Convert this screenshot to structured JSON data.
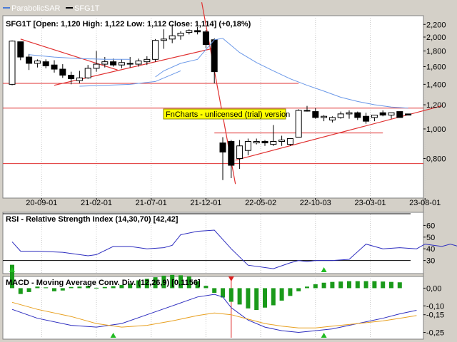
{
  "legend": {
    "items": [
      {
        "label": "ParabolicSAR",
        "color": "#4a7bd6"
      },
      {
        "label": "SFG1T",
        "color": "#000000"
      }
    ]
  },
  "watermark": "FnCharts - unlicensed (trial) version",
  "chart_data": [
    {
      "type": "candlestick",
      "title": "SFG1T [Open: 1,120  High: 1,122  Low: 1,112  Close: 1,114] (+0,18%)",
      "y_scale": "log",
      "ylim": [
        0.6,
        2.3
      ],
      "yticks": [
        0.8,
        1.0,
        1.2,
        1.4,
        1.6,
        1.8,
        2.0,
        2.2
      ],
      "ytick_labels": [
        "0,800",
        "1,000",
        "1,200",
        "1,400",
        "1,600",
        "1,800",
        "2,000",
        "2,200"
      ],
      "xtick_labels": [
        "20-09-01",
        "21-02-01",
        "21-07-01",
        "21-12-01",
        "22-05-02",
        "22-10-03",
        "23-03-01",
        "23-08-01"
      ],
      "xtick_index": [
        3.5,
        10,
        16.5,
        23,
        29.5,
        36,
        42.5,
        49
      ],
      "candles": [
        {
          "o": 1.4,
          "h": 1.95,
          "l": 1.39,
          "c": 1.94
        },
        {
          "o": 1.93,
          "h": 1.93,
          "l": 1.68,
          "c": 1.72
        },
        {
          "o": 1.72,
          "h": 1.76,
          "l": 1.56,
          "c": 1.64
        },
        {
          "o": 1.64,
          "h": 1.69,
          "l": 1.59,
          "c": 1.67
        },
        {
          "o": 1.66,
          "h": 1.69,
          "l": 1.58,
          "c": 1.61
        },
        {
          "o": 1.62,
          "h": 1.68,
          "l": 1.53,
          "c": 1.57
        },
        {
          "o": 1.57,
          "h": 1.63,
          "l": 1.47,
          "c": 1.5
        },
        {
          "o": 1.5,
          "h": 1.54,
          "l": 1.4,
          "c": 1.46
        },
        {
          "o": 1.44,
          "h": 1.55,
          "l": 1.41,
          "c": 1.47
        },
        {
          "o": 1.47,
          "h": 1.62,
          "l": 1.46,
          "c": 1.58
        },
        {
          "o": 1.58,
          "h": 1.8,
          "l": 1.54,
          "c": 1.63
        },
        {
          "o": 1.63,
          "h": 1.72,
          "l": 1.59,
          "c": 1.66
        },
        {
          "o": 1.66,
          "h": 1.7,
          "l": 1.6,
          "c": 1.62
        },
        {
          "o": 1.62,
          "h": 1.69,
          "l": 1.58,
          "c": 1.65
        },
        {
          "o": 1.64,
          "h": 1.72,
          "l": 1.59,
          "c": 1.63
        },
        {
          "o": 1.63,
          "h": 1.7,
          "l": 1.6,
          "c": 1.67
        },
        {
          "o": 1.66,
          "h": 1.73,
          "l": 1.62,
          "c": 1.69
        },
        {
          "o": 1.69,
          "h": 1.97,
          "l": 1.66,
          "c": 1.95
        },
        {
          "o": 1.95,
          "h": 2.12,
          "l": 1.83,
          "c": 1.97
        },
        {
          "o": 1.97,
          "h": 2.2,
          "l": 1.91,
          "c": 2.02
        },
        {
          "o": 2.02,
          "h": 2.09,
          "l": 1.96,
          "c": 2.06
        },
        {
          "o": 2.07,
          "h": 2.12,
          "l": 2.04,
          "c": 2.1
        },
        {
          "o": 2.1,
          "h": 2.16,
          "l": 2.04,
          "c": 2.08
        },
        {
          "o": 2.08,
          "h": 2.11,
          "l": 1.84,
          "c": 1.89
        },
        {
          "o": 1.96,
          "h": 1.98,
          "l": 1.41,
          "c": 1.54
        },
        {
          "o": 0.9,
          "h": 0.94,
          "l": 0.68,
          "c": 0.84
        },
        {
          "o": 0.91,
          "h": 0.92,
          "l": 0.69,
          "c": 0.76
        },
        {
          "o": 0.8,
          "h": 0.92,
          "l": 0.74,
          "c": 0.88
        },
        {
          "o": 0.85,
          "h": 0.93,
          "l": 0.82,
          "c": 0.91
        },
        {
          "o": 0.9,
          "h": 0.93,
          "l": 0.89,
          "c": 0.91
        },
        {
          "o": 0.91,
          "h": 0.92,
          "l": 0.88,
          "c": 0.9
        },
        {
          "o": 0.89,
          "h": 1.03,
          "l": 0.88,
          "c": 0.91
        },
        {
          "o": 0.91,
          "h": 0.95,
          "l": 0.88,
          "c": 0.92
        },
        {
          "o": 0.89,
          "h": 0.92,
          "l": 0.88,
          "c": 0.93
        },
        {
          "o": 0.94,
          "h": 1.16,
          "l": 0.94,
          "c": 1.15
        },
        {
          "o": 1.15,
          "h": 1.19,
          "l": 1.14,
          "c": 1.15
        },
        {
          "o": 1.14,
          "h": 1.17,
          "l": 1.08,
          "c": 1.09
        },
        {
          "o": 1.09,
          "h": 1.11,
          "l": 1.06,
          "c": 1.1
        },
        {
          "o": 1.07,
          "h": 1.1,
          "l": 1.05,
          "c": 1.09
        },
        {
          "o": 1.09,
          "h": 1.14,
          "l": 1.08,
          "c": 1.12
        },
        {
          "o": 1.12,
          "h": 1.15,
          "l": 1.08,
          "c": 1.13
        },
        {
          "o": 1.13,
          "h": 1.14,
          "l": 1.07,
          "c": 1.09
        },
        {
          "o": 1.1,
          "h": 1.13,
          "l": 1.04,
          "c": 1.06
        },
        {
          "o": 1.09,
          "h": 1.11,
          "l": 1.06,
          "c": 1.11
        },
        {
          "o": 1.13,
          "h": 1.15,
          "l": 1.1,
          "c": 1.11
        },
        {
          "o": 1.11,
          "h": 1.12,
          "l": 1.08,
          "c": 1.13
        },
        {
          "o": 1.14,
          "h": 1.14,
          "l": 1.09,
          "c": 1.09
        },
        {
          "o": 1.12,
          "h": 1.12,
          "l": 1.11,
          "c": 1.11
        }
      ],
      "indicator_line": {
        "index": [
          17,
          18,
          20,
          22,
          24,
          25,
          27,
          29,
          31,
          33,
          35,
          37,
          39,
          41,
          43,
          45,
          47
        ],
        "values": [
          1.48,
          1.55,
          1.64,
          1.69,
          1.96,
          1.98,
          1.78,
          1.65,
          1.55,
          1.46,
          1.39,
          1.33,
          1.27,
          1.23,
          1.2,
          1.18,
          1.17
        ]
      },
      "sar_upper": {
        "index": [
          2,
          5,
          8,
          11,
          14
        ],
        "values": [
          1.75,
          1.72,
          1.7,
          1.69,
          1.69
        ]
      },
      "sar_lower": {
        "index": [
          8,
          11,
          14,
          17,
          20
        ],
        "values": [
          1.38,
          1.39,
          1.4,
          1.43,
          1.55
        ]
      },
      "horizontal_lines": [
        1.41,
        1.17,
        0.97,
        0.77
      ],
      "trend_lines": [
        {
          "from": [
            1,
            1.97
          ],
          "to": [
            12.5,
            1.56
          ]
        },
        {
          "from": [
            5,
            1.39
          ],
          "to": [
            24,
            1.84
          ]
        },
        {
          "from": [
            22.5,
            2.6
          ],
          "to": [
            26.5,
            0.66
          ]
        },
        {
          "from": [
            26.5,
            0.79
          ],
          "to": [
            51,
            1.19
          ]
        }
      ]
    },
    {
      "type": "line",
      "title": "RSI - Relative Strength Index (14,30,70) [42,42]",
      "ylim": [
        20,
        70
      ],
      "yticks": [
        30,
        40,
        50,
        60
      ],
      "ytick_labels": [
        "30",
        "40",
        "50",
        "60"
      ],
      "reference_lines": [
        70,
        30
      ],
      "series": [
        {
          "color": "#2d2dbf",
          "index": [
            0,
            1,
            3,
            6,
            9,
            10,
            12,
            14,
            16,
            18,
            19,
            20,
            22,
            24,
            26,
            28,
            31,
            33,
            34,
            35,
            36,
            38,
            40,
            42,
            44,
            46,
            48,
            49,
            51,
            52,
            53,
            54,
            55
          ],
          "values": [
            46,
            38,
            38,
            37,
            34,
            35,
            42,
            42,
            40,
            41,
            43,
            52,
            55,
            56,
            40,
            26,
            23,
            28,
            30,
            29,
            30,
            30,
            31,
            44,
            40,
            41,
            40,
            44,
            42,
            44,
            42,
            45,
            42
          ]
        }
      ],
      "markers": [
        {
          "index": 0,
          "side": "buy"
        },
        {
          "index": 37,
          "side": "buy"
        }
      ]
    },
    {
      "type": "bar+line",
      "title": "MACD - Moving Average Conv. Div. (12,26,9) [0,1156]",
      "ylim": [
        -0.28,
        0.05
      ],
      "yticks": [
        0.0,
        -0.1,
        -0.15,
        -0.25
      ],
      "ytick_labels": [
        "0,00",
        "-0,10",
        "-0,15",
        "-0,25"
      ],
      "histogram": [
        0.06,
        -0.015,
        -0.01,
        0.004,
        0.002,
        -0.008,
        -0.006,
        0.003,
        0.004,
        0.006,
        0.001,
        0.003,
        0.005,
        0.008,
        0.012,
        0.02,
        0.024,
        0.028,
        0.032,
        0.034,
        0.033,
        0.03,
        0.018,
        0.006,
        -0.012,
        -0.024,
        -0.035,
        -0.042,
        -0.052,
        -0.056,
        -0.05,
        -0.044,
        -0.032,
        -0.02,
        -0.008,
        0.004,
        0.01,
        0.014,
        0.016,
        0.017,
        0.018,
        0.018,
        0.018,
        0.018,
        0.017,
        0.016,
        0.015
      ],
      "series": [
        {
          "color": "#2d2dbf",
          "index": [
            0,
            3,
            7,
            10,
            13,
            16,
            19,
            22,
            24,
            25,
            26,
            28,
            30,
            32,
            34,
            36,
            38,
            40,
            42,
            44,
            46,
            48
          ],
          "values": [
            -0.12,
            -0.17,
            -0.21,
            -0.22,
            -0.2,
            -0.15,
            -0.1,
            -0.05,
            -0.035,
            -0.05,
            -0.11,
            -0.18,
            -0.22,
            -0.24,
            -0.25,
            -0.24,
            -0.23,
            -0.21,
            -0.19,
            -0.17,
            -0.145,
            -0.125
          ]
        },
        {
          "color": "#e8a020",
          "index": [
            0,
            3,
            7,
            10,
            13,
            16,
            19,
            22,
            24,
            26,
            28,
            30,
            32,
            34,
            36,
            38,
            40,
            42,
            44,
            46,
            48
          ],
          "values": [
            -0.08,
            -0.12,
            -0.16,
            -0.2,
            -0.22,
            -0.21,
            -0.185,
            -0.155,
            -0.14,
            -0.15,
            -0.175,
            -0.2,
            -0.215,
            -0.225,
            -0.225,
            -0.215,
            -0.205,
            -0.195,
            -0.185,
            -0.17,
            -0.155
          ]
        }
      ],
      "markers": [
        {
          "index": 12,
          "side": "buy"
        },
        {
          "index": 26,
          "side": "sell"
        },
        {
          "index": 37,
          "side": "buy"
        }
      ]
    }
  ]
}
